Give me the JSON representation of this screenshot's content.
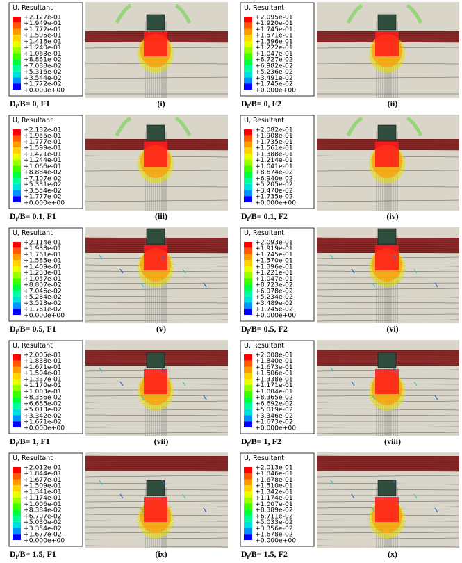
{
  "panels": [
    {
      "legend_title": "U, Resultant",
      "values": [
        "+2.127e-01",
        "+1.949e-01",
        "+1.772e-01",
        "+1.595e-01",
        "+1.418e-01",
        "+1.240e-01",
        "+1.063e-01",
        "+8.861e-02",
        "+7.088e-02",
        "+5.316e-02",
        "+3.544e-02",
        "+1.772e-02",
        "+0.000e+00"
      ],
      "caption": {
        "main": "D",
        "sub": "f",
        "rest": "/B= 0, F1"
      },
      "label": "(i)"
    },
    {
      "legend_title": "U, Resultant",
      "values": [
        "+2.095e-01",
        "+1.920e-01",
        "+1.745e-01",
        "+1.571e-01",
        "+1.396e-01",
        "+1.222e-01",
        "+1.047e-01",
        "+8.727e-02",
        "+6.982e-02",
        "+5.236e-02",
        "+3.491e-02",
        "+1.745e-02",
        "+0.000e+00"
      ],
      "caption": {
        "main": "D",
        "sub": "f",
        "rest": "/B= 0, F2"
      },
      "label": "(ii)"
    },
    {
      "legend_title": "U, Resultant",
      "values": [
        "+2.132e-01",
        "+1.955e-01",
        "+1.777e-01",
        "+1.599e-01",
        "+1.421e-01",
        "+1.244e-01",
        "+1.066e-01",
        "+8.884e-02",
        "+7.107e-02",
        "+5.331e-02",
        "+3.554e-02",
        "+1.777e-02",
        "+0.000e+00"
      ],
      "caption": {
        "main": "D",
        "sub": "f",
        "rest": "/B= 0.1, F1"
      },
      "label": "(iii)"
    },
    {
      "legend_title": "U, Resultant",
      "values": [
        "+2.082e-01",
        "+1.908e-01",
        "+1.735e-01",
        "+1.561e-01",
        "+1.388e-01",
        "+1.214e-01",
        "+1.041e-01",
        "+8.674e-02",
        "+6.940e-02",
        "+5.205e-02",
        "+3.470e-02",
        "+1.735e-02",
        "+0.000e+00"
      ],
      "caption": {
        "main": "D",
        "sub": "f",
        "rest": "/B= 0.1, F2"
      },
      "label": "(iv)"
    },
    {
      "legend_title": "U, Resultant",
      "values": [
        "+2.114e-01",
        "+1.938e-01",
        "+1.761e-01",
        "+1.585e-01",
        "+1.409e-01",
        "+1.233e-01",
        "+1.057e-01",
        "+8.807e-02",
        "+7.046e-02",
        "+5.284e-02",
        "+3.523e-02",
        "+1.761e-02",
        "+0.000e+00"
      ],
      "caption": {
        "main": "D",
        "sub": "f",
        "rest": "/B= 0.5, F1"
      },
      "label": "(v)"
    },
    {
      "legend_title": "U, Resultant",
      "values": [
        "+2.093e-01",
        "+1.919e-01",
        "+1.745e-01",
        "+1.570e-01",
        "+1.396e-01",
        "+1.221e-01",
        "+1.047e-01",
        "+8.723e-02",
        "+6.978e-02",
        "+5.234e-02",
        "+3.489e-02",
        "+1.745e-02",
        "+0.000e+00"
      ],
      "caption": {
        "main": "D",
        "sub": "f",
        "rest": "/B= 0.5, F2"
      },
      "label": "(vi)"
    },
    {
      "legend_title": "U, Resultant",
      "values": [
        "+2.005e-01",
        "+1.838e-01",
        "+1.671e-01",
        "+1.504e-01",
        "+1.337e-01",
        "+1.170e-01",
        "+1.003e-01",
        "+8.356e-02",
        "+6.685e-02",
        "+5.013e-02",
        "+3.342e-02",
        "+1.671e-02",
        "+0.000e+00"
      ],
      "caption": {
        "main": "D",
        "sub": "f",
        "rest": "/B= 1, F1"
      },
      "label": "(vii)"
    },
    {
      "legend_title": "U, Resultant",
      "values": [
        "+2.008e-01",
        "+1.840e-01",
        "+1.673e-01",
        "+1.506e-01",
        "+1.338e-01",
        "+1.171e-01",
        "+1.004e-01",
        "+8.365e-02",
        "+6.692e-02",
        "+5.019e-02",
        "+3.346e-02",
        "+1.673e-02",
        "+0.000e+00"
      ],
      "caption": {
        "main": "D",
        "sub": "f",
        "rest": "/B= 1, F2"
      },
      "label": "(viii)"
    },
    {
      "legend_title": "U, Resultant",
      "values": [
        "+2.012e-01",
        "+1.844e-01",
        "+1.677e-01",
        "+1.509e-01",
        "+1.341e-01",
        "+1.174e-01",
        "+1.006e-01",
        "+8.384e-02",
        "+6.707e-02",
        "+5.030e-02",
        "+3.354e-02",
        "+1.677e-02",
        "+0.000e+00"
      ],
      "caption": {
        "main": "D",
        "sub": "f",
        "rest": "/B= 1.5, F1"
      },
      "label": "(ix)"
    },
    {
      "legend_title": "U, Resultant",
      "values": [
        "+2.013e-01",
        "+1.846e-01",
        "+1.678e-01",
        "+1.510e-01",
        "+1.342e-01",
        "+1.174e-01",
        "+1.007e-01",
        "+8.389e-02",
        "+6.711e-02",
        "+5.033e-02",
        "+3.356e-02",
        "+1.678e-02",
        "+0.000e+00"
      ],
      "caption": {
        "main": "D",
        "sub": "f",
        "rest": "/B= 1.5, F2"
      },
      "label": "(x)"
    }
  ]
}
